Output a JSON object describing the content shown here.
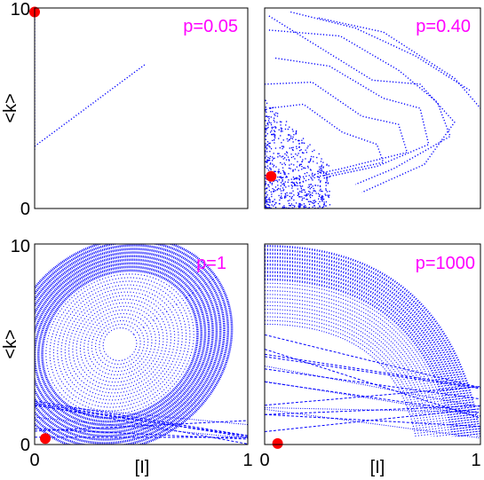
{
  "chart_data": [
    {
      "type": "scatter",
      "panel_label": "p=0.05",
      "xlim": [
        0,
        1
      ],
      "ylim": [
        0,
        10
      ],
      "y_ticks": [
        "0",
        "10"
      ],
      "x_ticks": [],
      "ylabel": "<k>",
      "xlabel": "",
      "series_color": "#0000ff",
      "marker": {
        "x": 0.0,
        "y": 9.8,
        "color": "#ff0000"
      },
      "trajectories": [
        {
          "points": [
            [
              0.0,
              9.9
            ],
            [
              0.0,
              2.9
            ]
          ]
        },
        {
          "points": [
            [
              0.0,
              3.1
            ],
            [
              0.52,
              7.2
            ]
          ]
        }
      ]
    },
    {
      "type": "scatter",
      "panel_label": "p=0.40",
      "xlim": [
        0,
        1
      ],
      "ylim": [
        0,
        10
      ],
      "y_ticks": [],
      "x_ticks": [],
      "ylabel": "",
      "xlabel": "",
      "series_color": "#0000ff",
      "marker": {
        "x": 0.03,
        "y": 1.6,
        "color": "#ff0000"
      },
      "trajectories": [
        {
          "points": [
            [
              0.02,
              9.6
            ],
            [
              0.2,
              8.4
            ],
            [
              0.5,
              6.4
            ],
            [
              0.72,
              6.2
            ],
            [
              0.88,
              4.3
            ],
            [
              0.74,
              2.2
            ],
            [
              0.45,
              0.8
            ]
          ]
        },
        {
          "points": [
            [
              0.02,
              8.9
            ],
            [
              0.35,
              8.6
            ],
            [
              0.62,
              6.9
            ],
            [
              0.8,
              5.3
            ],
            [
              0.86,
              3.6
            ],
            [
              0.6,
              2.0
            ],
            [
              0.42,
              1.2
            ]
          ]
        },
        {
          "points": [
            [
              0.05,
              7.5
            ],
            [
              0.3,
              7.1
            ],
            [
              0.55,
              5.5
            ],
            [
              0.72,
              5.0
            ],
            [
              0.76,
              3.2
            ],
            [
              0.52,
              2.1
            ],
            [
              0.3,
              1.6
            ]
          ]
        },
        {
          "points": [
            [
              0.0,
              6.2
            ],
            [
              0.22,
              6.3
            ],
            [
              0.45,
              4.6
            ],
            [
              0.62,
              4.2
            ],
            [
              0.66,
              2.8
            ],
            [
              0.36,
              2.0
            ],
            [
              0.1,
              1.4
            ]
          ]
        },
        {
          "points": [
            [
              0.02,
              5.0
            ],
            [
              0.18,
              5.2
            ],
            [
              0.36,
              3.8
            ],
            [
              0.52,
              3.2
            ],
            [
              0.55,
              2.3
            ],
            [
              0.25,
              1.6
            ],
            [
              0.05,
              0.9
            ]
          ]
        },
        {
          "points": [
            [
              0.25,
              9.5
            ],
            [
              0.55,
              8.8
            ],
            [
              0.88,
              6.5
            ],
            [
              1.0,
              5.0
            ]
          ]
        },
        {
          "points": [
            [
              0.12,
              9.8
            ],
            [
              0.42,
              9.0
            ],
            [
              0.7,
              7.6
            ],
            [
              0.95,
              5.9
            ]
          ]
        }
      ],
      "cloud": {
        "x_range": [
          0.0,
          0.3
        ],
        "y_range": [
          0.0,
          5.5
        ],
        "count": 700
      }
    },
    {
      "type": "scatter",
      "panel_label": "p=1",
      "xlim": [
        0,
        1
      ],
      "ylim": [
        0,
        10
      ],
      "y_ticks": [
        "0",
        "10"
      ],
      "x_ticks": [
        "0",
        "1"
      ],
      "ylabel": "<k>",
      "xlabel": "[I]",
      "series_color": "#0000ff",
      "marker": {
        "x": 0.05,
        "y": 0.3,
        "color": "#ff0000"
      },
      "ellipses": {
        "cx": 0.4,
        "cy": 5.0,
        "rx_range": [
          0.08,
          0.55
        ],
        "ry_range": [
          0.8,
          5.0
        ],
        "count": 26,
        "tilt_deg": -35
      },
      "lines": {
        "count": 9,
        "y_start_range": [
          0.2,
          2.6
        ],
        "y_end_range": [
          0.0,
          1.2
        ]
      }
    },
    {
      "type": "scatter",
      "panel_label": "p=1000",
      "xlim": [
        0,
        1
      ],
      "ylim": [
        0,
        10
      ],
      "y_ticks": [],
      "x_ticks": [
        "0",
        "1"
      ],
      "ylabel": "",
      "xlabel": "[I]",
      "series_color": "#0000ff",
      "marker": {
        "x": 0.06,
        "y": 0.05,
        "color": "#ff0000"
      },
      "arcs": {
        "count": 22,
        "y_top_range": [
          6.0,
          9.9
        ],
        "x_right_range": [
          0.7,
          1.0
        ]
      },
      "lines": {
        "count": 14,
        "y_start_range": [
          0.05,
          5.5
        ],
        "y_end_range": [
          0.0,
          3.5
        ]
      }
    }
  ]
}
